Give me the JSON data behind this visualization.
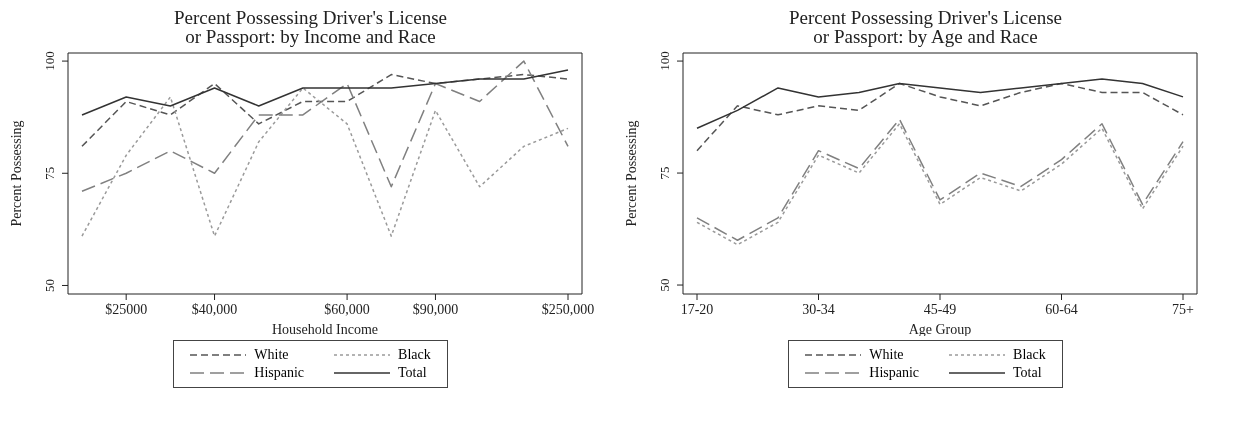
{
  "chart_data": [
    {
      "type": "line",
      "title": "Percent Possessing Driver's License\nor Passport: by Income and Race",
      "xlabel": "Household Income",
      "ylabel": "Percent Possessing",
      "categories": [
        null,
        "$25000",
        null,
        "$40,000",
        null,
        null,
        "$60,000",
        null,
        "$90,000",
        null,
        null,
        "$250,000"
      ],
      "ylim": [
        48.1,
        101.8
      ],
      "yticks": [
        50,
        75,
        100
      ],
      "grid": false,
      "legend": "bottom",
      "marker": "none",
      "series": [
        {
          "name": "White",
          "color": "#555555",
          "line_style": "dashed",
          "values": [
            81,
            91,
            88,
            95,
            86,
            91,
            91,
            97,
            95,
            96,
            97,
            96
          ]
        },
        {
          "name": "Black",
          "color": "#9a9a9a",
          "line_style": "dotted",
          "values": [
            61,
            79,
            92,
            61,
            82,
            94,
            86,
            61,
            89,
            72,
            81,
            85
          ]
        },
        {
          "name": "Hispanic",
          "color": "#808080",
          "line_style": "dashed",
          "values": [
            71,
            75,
            80,
            75,
            88,
            88,
            95,
            72,
            95,
            91,
            100,
            81
          ]
        },
        {
          "name": "Total",
          "color": "#333333",
          "line_style": "solid",
          "values": [
            88,
            92,
            90,
            94,
            90,
            94,
            94,
            94,
            95,
            96,
            96,
            98
          ]
        }
      ]
    },
    {
      "type": "line",
      "title": "Percent Possessing Driver's License\nor Passport: by Age and Race",
      "xlabel": "Age Group",
      "ylabel": "Percent Possessing",
      "categories": [
        "17-20",
        null,
        null,
        "30-34",
        null,
        null,
        "45-49",
        null,
        null,
        "60-64",
        null,
        null,
        "75+"
      ],
      "ylim": [
        48,
        101.8
      ],
      "yticks": [
        50,
        75,
        100
      ],
      "grid": false,
      "legend": "bottom",
      "marker": "none",
      "series": [
        {
          "name": "White",
          "color": "#555555",
          "line_style": "dashed",
          "values": [
            80,
            90,
            88,
            90,
            89,
            95,
            92,
            90,
            93,
            95,
            93,
            93,
            88
          ]
        },
        {
          "name": "Black",
          "color": "#9a9a9a",
          "line_style": "dotted",
          "values": [
            64,
            59,
            64,
            79,
            75,
            86,
            68,
            74,
            71,
            77,
            85,
            67,
            81
          ]
        },
        {
          "name": "Hispanic",
          "color": "#808080",
          "line_style": "dashed",
          "values": [
            65,
            60,
            65,
            80,
            76,
            87,
            69,
            75,
            72,
            78,
            86,
            68,
            82
          ]
        },
        {
          "name": "Total",
          "color": "#333333",
          "line_style": "solid",
          "values": [
            85,
            89,
            94,
            92,
            93,
            95,
            94,
            93,
            94,
            95,
            96,
            95,
            92
          ]
        }
      ]
    }
  ]
}
